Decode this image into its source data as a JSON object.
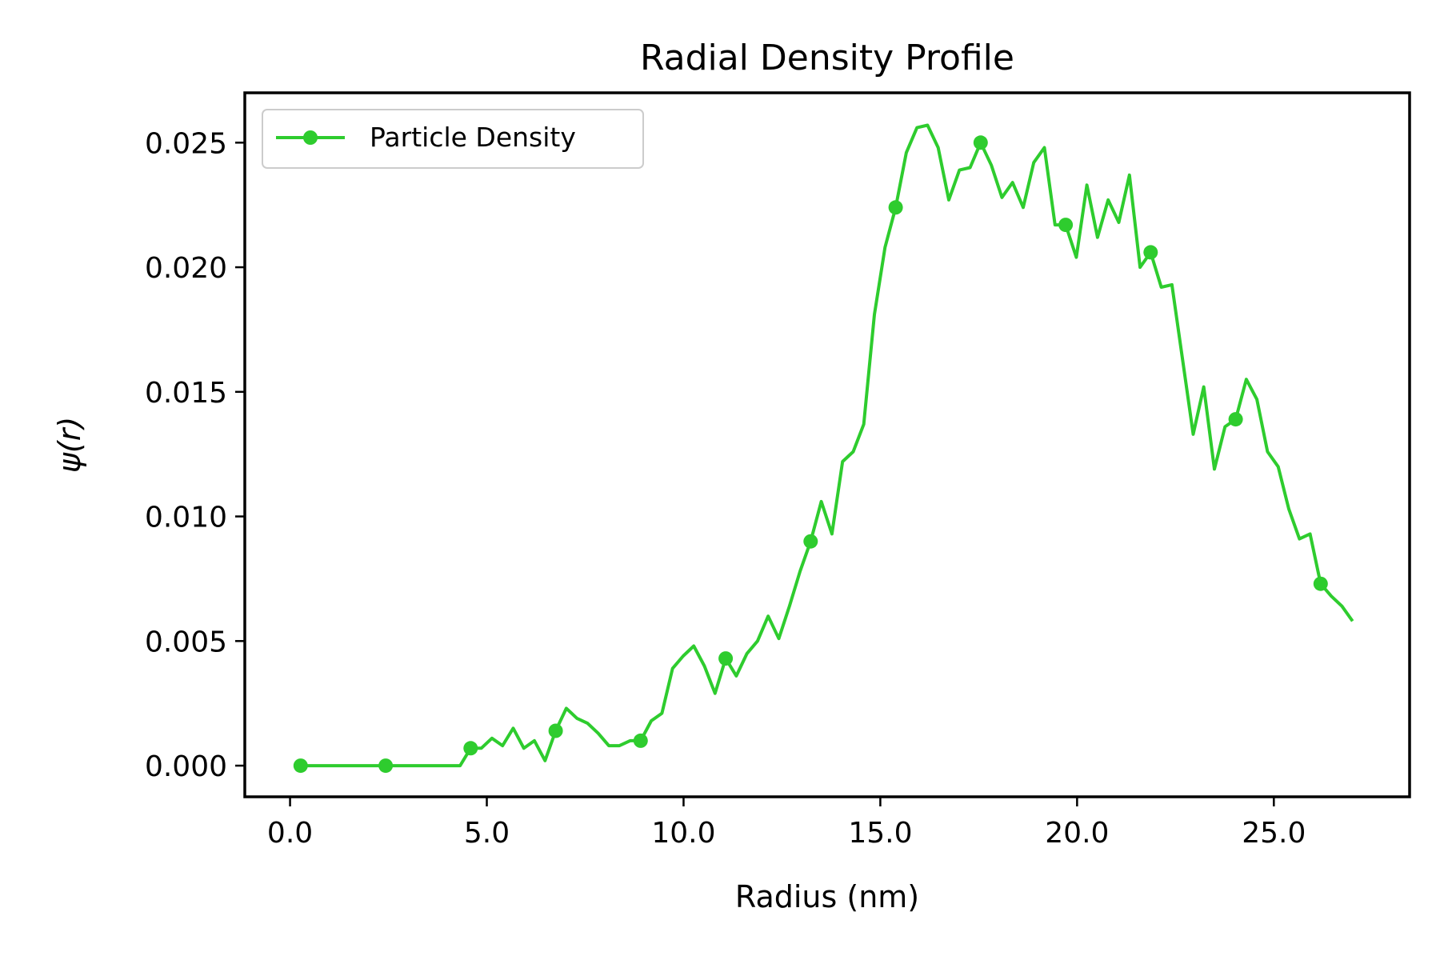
{
  "chart_data": {
    "type": "line",
    "title": "Radial Density Profile",
    "xlabel": "Radius (nm)",
    "ylabel": "ψ(r)",
    "xlim": [
      -1.15,
      28.45
    ],
    "ylim": [
      -0.00125,
      0.027
    ],
    "xticks": [
      0.0,
      5.0,
      10.0,
      15.0,
      20.0,
      25.0
    ],
    "xtick_labels": [
      "0.0",
      "5.0",
      "10.0",
      "15.0",
      "20.0",
      "25.0"
    ],
    "yticks": [
      0.0,
      0.005,
      0.01,
      0.015,
      0.02,
      0.025
    ],
    "ytick_labels": [
      "0.000",
      "0.005",
      "0.010",
      "0.015",
      "0.020",
      "0.025"
    ],
    "grid": false,
    "legend_position": "upper-left",
    "color": "#2ecc2e",
    "series": [
      {
        "name": "Particle Density",
        "marker_every": 8,
        "x": [
          0.27,
          0.54,
          0.81,
          1.08,
          1.35,
          1.62,
          1.89,
          2.16,
          2.43,
          2.7,
          2.97,
          3.24,
          3.51,
          3.78,
          4.05,
          4.32,
          4.59,
          4.86,
          5.13,
          5.4,
          5.67,
          5.94,
          6.21,
          6.48,
          6.75,
          7.02,
          7.29,
          7.56,
          7.83,
          8.1,
          8.37,
          8.64,
          8.91,
          9.18,
          9.45,
          9.72,
          9.99,
          10.26,
          10.53,
          10.8,
          11.07,
          11.34,
          11.61,
          11.88,
          12.15,
          12.42,
          12.69,
          12.96,
          13.23,
          13.5,
          13.77,
          14.04,
          14.31,
          14.58,
          14.85,
          15.12,
          15.39,
          15.66,
          15.93,
          16.2,
          16.47,
          16.74,
          17.01,
          17.28,
          17.55,
          17.82,
          18.09,
          18.36,
          18.63,
          18.9,
          19.17,
          19.44,
          19.71,
          19.98,
          20.25,
          20.52,
          20.79,
          21.06,
          21.33,
          21.6,
          21.87,
          22.14,
          22.41,
          22.68,
          22.95,
          23.22,
          23.49,
          23.76,
          24.03,
          24.3,
          24.57,
          24.84,
          25.11,
          25.38,
          25.65,
          25.92,
          26.19,
          26.46,
          26.73,
          27.0
        ],
        "y": [
          0.0,
          0.0,
          0.0,
          0.0,
          0.0,
          0.0,
          0.0,
          0.0,
          0.0,
          0.0,
          0.0,
          0.0,
          0.0,
          0.0,
          0.0,
          0.0,
          0.0007,
          0.0007,
          0.0011,
          0.0008,
          0.0015,
          0.0007,
          0.001,
          0.0002,
          0.0014,
          0.0023,
          0.0019,
          0.0017,
          0.0013,
          0.0008,
          0.0008,
          0.001,
          0.001,
          0.0018,
          0.0021,
          0.0039,
          0.0044,
          0.0048,
          0.004,
          0.0029,
          0.0043,
          0.0036,
          0.0045,
          0.005,
          0.006,
          0.0051,
          0.0064,
          0.0078,
          0.009,
          0.0106,
          0.0093,
          0.0122,
          0.0126,
          0.0137,
          0.0181,
          0.0208,
          0.0224,
          0.0246,
          0.0256,
          0.0257,
          0.0248,
          0.0227,
          0.0239,
          0.024,
          0.025,
          0.0241,
          0.0228,
          0.0234,
          0.0224,
          0.0242,
          0.0248,
          0.0217,
          0.0217,
          0.0204,
          0.0233,
          0.0212,
          0.0227,
          0.0218,
          0.0237,
          0.02,
          0.0206,
          0.0192,
          0.0193,
          0.0163,
          0.0133,
          0.0152,
          0.0119,
          0.0136,
          0.0139,
          0.0155,
          0.0147,
          0.0126,
          0.012,
          0.0103,
          0.0091,
          0.0093,
          0.0073,
          0.0068,
          0.0064,
          0.0058
        ]
      }
    ]
  }
}
